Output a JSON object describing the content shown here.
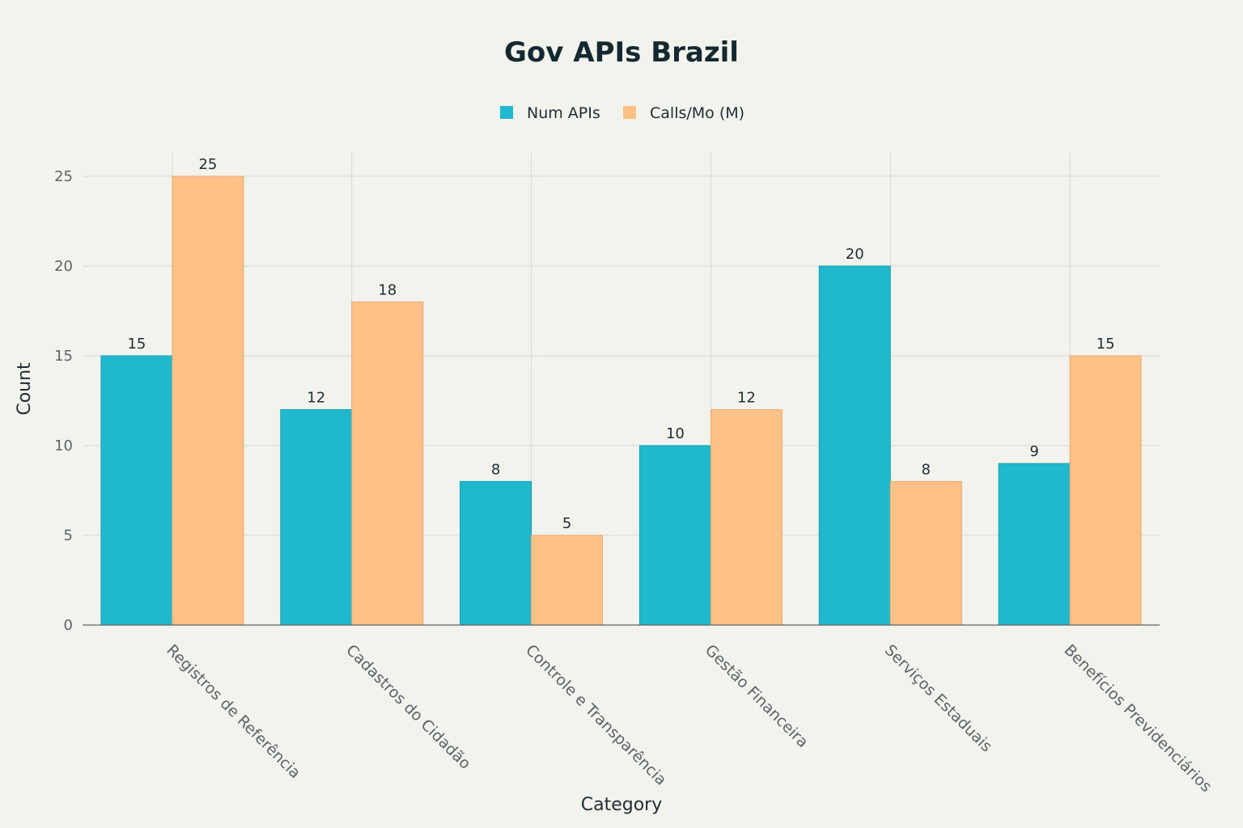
{
  "chart_data": {
    "type": "bar",
    "title": "Gov APIs Brazil",
    "xlabel": "Category",
    "ylabel": "Count",
    "ylim": [
      0,
      25
    ],
    "yticks": [
      0,
      5,
      10,
      15,
      20,
      25
    ],
    "grid": true,
    "legend_position": "top-center",
    "categories": [
      "Registros de Referência",
      "Cadastros do Cidadão",
      "Controle e Transparência",
      "Gestão Financeira",
      "Serviços Estaduais",
      "Benefícios Previdenciários"
    ],
    "series": [
      {
        "name": "Num APIs",
        "color": "#1fb8cd",
        "values": [
          15,
          12,
          8,
          10,
          20,
          9
        ]
      },
      {
        "name": "Calls/Mo (M)",
        "color": "#ffc185",
        "values": [
          25,
          18,
          5,
          12,
          8,
          15
        ]
      }
    ]
  }
}
